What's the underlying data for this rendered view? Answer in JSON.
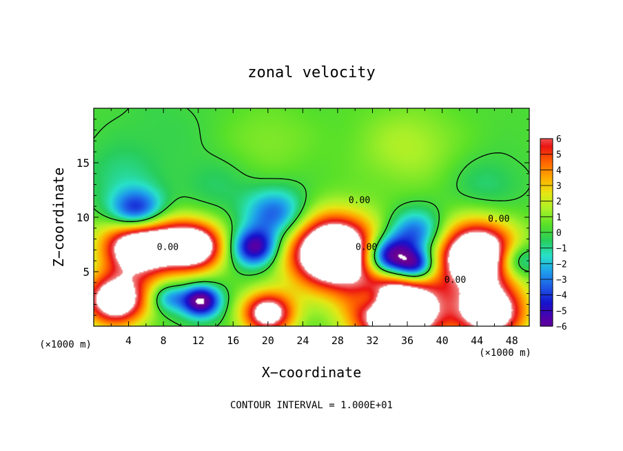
{
  "chart_data": {
    "type": "heatmap",
    "title": "zonal velocity",
    "xlabel": "X−coordinate",
    "ylabel": "Z−coordinate",
    "x_unit": "(×1000 m)",
    "y_unit": "(×1000 m)",
    "xlim": [
      0,
      50
    ],
    "ylim": [
      0,
      20
    ],
    "x_ticks": [
      "4",
      "8",
      "12",
      "16",
      "20",
      "24",
      "28",
      "32",
      "36",
      "40",
      "44",
      "48"
    ],
    "y_ticks": [
      "5",
      "10",
      "15"
    ],
    "colorbar_ticks": [
      "6",
      "5",
      "4",
      "3",
      "2",
      "1",
      "0",
      "−1",
      "−2",
      "−3",
      "−4",
      "−5",
      "−6"
    ],
    "colorbar_range": [
      -6,
      6
    ],
    "contour_labels": [
      {
        "text": "0.00",
        "x": 30.5,
        "z": 11.3
      },
      {
        "text": "0.00",
        "x": 31.3,
        "z": 7.0
      },
      {
        "text": "0.00",
        "x": 41.5,
        "z": 4.0
      },
      {
        "text": "0.00",
        "x": 46.5,
        "z": 9.6
      },
      {
        "text": "0.00",
        "x": 8.5,
        "z": 7.0
      }
    ],
    "footer": "CONTOUR INTERVAL = 1.000E+01",
    "blobs": [
      {
        "x": 5.5,
        "z": 7.5,
        "r": 4.3,
        "v": 11
      },
      {
        "x": 11.5,
        "z": 7.3,
        "r": 3.4,
        "v": 9
      },
      {
        "x": 2.5,
        "z": 2.4,
        "r": 3.6,
        "v": 9
      },
      {
        "x": 20.0,
        "z": 1.2,
        "r": 3.0,
        "v": 8
      },
      {
        "x": 27.5,
        "z": 6.8,
        "r": 5.0,
        "v": 12
      },
      {
        "x": 35.0,
        "z": 1.5,
        "r": 5.0,
        "v": 12
      },
      {
        "x": 44.0,
        "z": 6.5,
        "r": 4.5,
        "v": 11
      },
      {
        "x": 45.5,
        "z": 1.3,
        "r": 4.0,
        "v": 9
      },
      {
        "x": 5.0,
        "z": 10.3,
        "r": 3.2,
        "v": -7
      },
      {
        "x": 12.3,
        "z": 2.3,
        "r": 2.2,
        "v": -7
      },
      {
        "x": 18.5,
        "z": 7.2,
        "r": 2.6,
        "v": -6
      },
      {
        "x": 33.8,
        "z": 6.3,
        "r": 2.8,
        "v": -8
      },
      {
        "x": 37.0,
        "z": 5.5,
        "r": 2.2,
        "v": -6
      },
      {
        "x": 21.0,
        "z": 10.2,
        "r": 3.6,
        "v": -4
      },
      {
        "x": 37.0,
        "z": 8.5,
        "r": 3.2,
        "v": -4
      },
      {
        "x": 32.0,
        "z": 2.5,
        "r": 2.0,
        "v": -3
      },
      {
        "x": 8.5,
        "z": 2.6,
        "r": 2.0,
        "v": -3
      },
      {
        "x": 48.5,
        "z": 6.0,
        "r": 2.5,
        "v": -4
      },
      {
        "x": 36.0,
        "z": 16.5,
        "r": 6.0,
        "v": 1.4
      },
      {
        "x": 20.0,
        "z": 17.0,
        "r": 5.5,
        "v": 0.8
      },
      {
        "x": 8.0,
        "z": 18.0,
        "r": 6.0,
        "v": -0.4
      },
      {
        "x": 45.0,
        "z": 13.0,
        "r": 4.0,
        "v": -1.0
      },
      {
        "x": 14.0,
        "z": 13.0,
        "r": 4.0,
        "v": -0.8
      },
      {
        "x": 3.0,
        "z": 14.0,
        "r": 4.0,
        "v": -1.0
      }
    ]
  }
}
